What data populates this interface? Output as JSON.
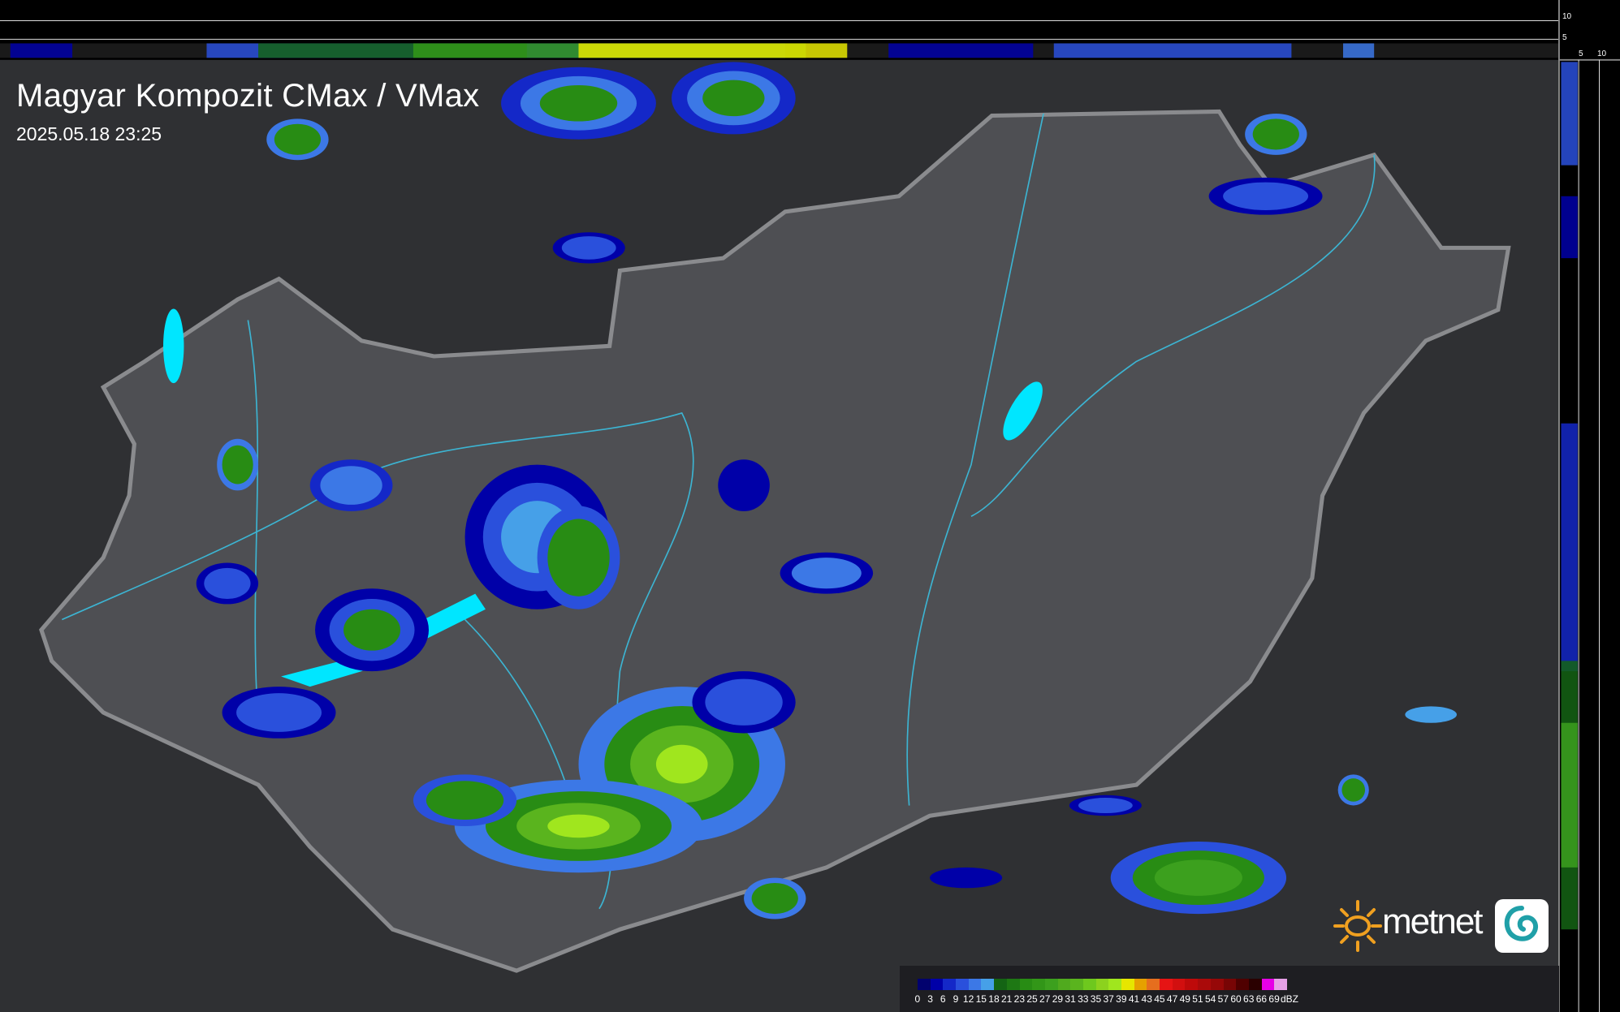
{
  "header": {
    "title": "Magyar Kompozit CMax / VMax",
    "timestamp": "2025.05.18 23:25"
  },
  "profile_axes": {
    "top_ticks": [
      "10",
      "5"
    ],
    "right_ticks": [
      "5",
      "10"
    ]
  },
  "logo": {
    "text": "metnet",
    "icon": "sun-icon",
    "badge_icon": "swirl-icon"
  },
  "legend": {
    "unit": "dBZ",
    "values": [
      "0",
      "3",
      "6",
      "9",
      "12",
      "15",
      "18",
      "21",
      "23",
      "25",
      "27",
      "29",
      "31",
      "33",
      "35",
      "37",
      "39",
      "41",
      "43",
      "45",
      "47",
      "49",
      "51",
      "54",
      "57",
      "60",
      "63",
      "66",
      "69"
    ],
    "colors": [
      "#02026e",
      "#0000a8",
      "#1428c8",
      "#2a50dc",
      "#3c78e6",
      "#46a0e8",
      "#146414",
      "#1e7814",
      "#288c14",
      "#329618",
      "#3ca01e",
      "#50aa1e",
      "#5ab41e",
      "#6ec81e",
      "#8cd21e",
      "#a0e61e",
      "#e6e600",
      "#e6a000",
      "#e66e1e",
      "#e61414",
      "#d20f0f",
      "#be0a0a",
      "#aa0a0a",
      "#960808",
      "#780505",
      "#500000",
      "#2a0000",
      "#e600e6",
      "#e6a0e6"
    ]
  },
  "colors": {
    "background": "#2f3033",
    "country": "#5a5b5f",
    "border": "#8a8b8e",
    "rivers": "#3cb4d2",
    "lakes": "#00e6ff"
  }
}
